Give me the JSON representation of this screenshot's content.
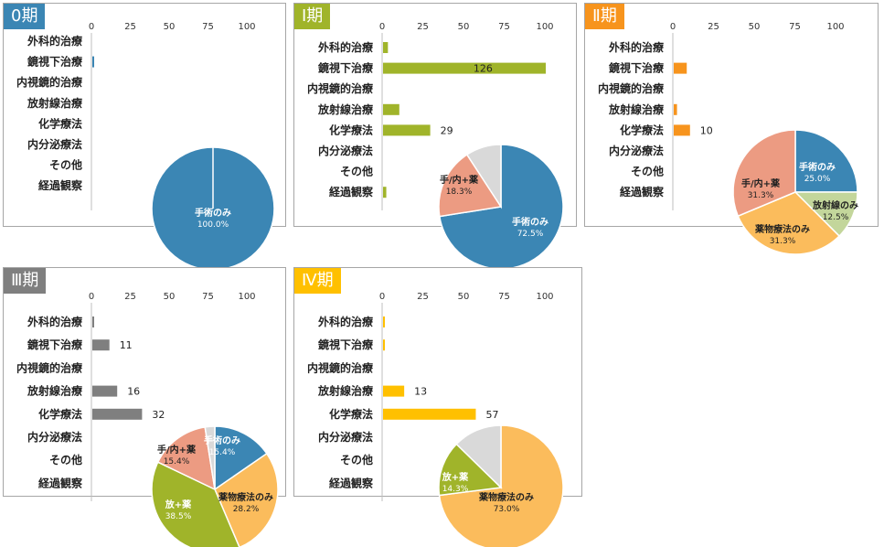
{
  "chart_data": [
    {
      "type": "bar",
      "stage": "0期",
      "tag_color": "#3b86b4",
      "bar_color": "#3b86b4",
      "categories": [
        "外科的治療",
        "鏡視下治療",
        "内視鏡的治療",
        "放射線治療",
        "化学療法",
        "内分泌療法",
        "その他",
        "経過観察"
      ],
      "values": [
        0,
        1,
        0,
        0,
        0,
        0,
        0,
        0
      ],
      "value_labels": [
        "",
        "",
        "",
        "",
        "",
        "",
        "",
        ""
      ],
      "xlim": [
        0,
        100
      ],
      "ticks": [
        "0",
        "25",
        "50",
        "75",
        "100"
      ],
      "pie": {
        "slices": [
          {
            "label": "手術のみ",
            "percent": "100.0%",
            "value": 100.0,
            "color": "#3b86b4"
          }
        ]
      }
    },
    {
      "type": "bar",
      "stage": "Ⅰ期",
      "tag_color": "#a0b42a",
      "bar_color": "#a0b42a",
      "categories": [
        "外科的治療",
        "鏡視下治療",
        "内視鏡的治療",
        "放射線治療",
        "化学療法",
        "内分泌療法",
        "その他",
        "経過観察"
      ],
      "values": [
        3,
        126,
        0,
        10,
        29,
        0,
        0,
        2
      ],
      "value_labels": [
        "",
        "126",
        "",
        "",
        "29",
        "",
        "",
        ""
      ],
      "xlim": [
        0,
        100
      ],
      "ticks": [
        "0",
        "25",
        "50",
        "75",
        "100"
      ],
      "pie": {
        "slices": [
          {
            "label": "手術のみ",
            "percent": "72.5%",
            "value": 72.5,
            "color": "#3b86b4"
          },
          {
            "label": "手/内+薬",
            "percent": "18.3%",
            "value": 18.3,
            "color": "#ec9b82"
          },
          {
            "label": "",
            "percent": "",
            "value": 9.2,
            "color": "#d9d9d9"
          }
        ]
      }
    },
    {
      "type": "bar",
      "stage": "Ⅱ期",
      "tag_color": "#f7941d",
      "bar_color": "#f7941d",
      "categories": [
        "外科的治療",
        "鏡視下治療",
        "内視鏡的治療",
        "放射線治療",
        "化学療法",
        "内分泌療法",
        "その他",
        "経過観察"
      ],
      "values": [
        0,
        8,
        0,
        2,
        10,
        0,
        0,
        0
      ],
      "value_labels": [
        "",
        "",
        "",
        "",
        "10",
        "",
        "",
        ""
      ],
      "xlim": [
        0,
        100
      ],
      "ticks": [
        "0",
        "25",
        "50",
        "75",
        "100"
      ],
      "pie": {
        "slices": [
          {
            "label": "手術のみ",
            "percent": "25.0%",
            "value": 25.0,
            "color": "#3b86b4"
          },
          {
            "label": "放射線のみ",
            "percent": "12.5%",
            "value": 12.5,
            "color": "#c3d69b"
          },
          {
            "label": "薬物療法のみ",
            "percent": "31.3%",
            "value": 31.2,
            "color": "#fbbc5c"
          },
          {
            "label": "手/内+薬",
            "percent": "31.3%",
            "value": 31.3,
            "color": "#ec9b82"
          }
        ]
      }
    },
    {
      "type": "bar",
      "stage": "Ⅲ期",
      "tag_color": "#7f7f7f",
      "bar_color": "#7f7f7f",
      "categories": [
        "外科的治療",
        "鏡視下治療",
        "内視鏡的治療",
        "放射線治療",
        "化学療法",
        "内分泌療法",
        "その他",
        "経過観察"
      ],
      "values": [
        1,
        11,
        0,
        16,
        32,
        0,
        0,
        0
      ],
      "value_labels": [
        "",
        "11",
        "",
        "16",
        "32",
        "",
        "",
        ""
      ],
      "xlim": [
        0,
        100
      ],
      "ticks": [
        "0",
        "25",
        "50",
        "75",
        "100"
      ],
      "pie": {
        "slices": [
          {
            "label": "手術のみ",
            "percent": "15.4%",
            "value": 15.4,
            "color": "#3b86b4"
          },
          {
            "label": "薬物療法のみ",
            "percent": "28.2%",
            "value": 28.2,
            "color": "#fbbc5c"
          },
          {
            "label": "放+薬",
            "percent": "38.5%",
            "value": 38.5,
            "color": "#a0b42a"
          },
          {
            "label": "手/内+薬",
            "percent": "15.4%",
            "value": 15.4,
            "color": "#ec9b82"
          },
          {
            "label": "",
            "percent": "",
            "value": 2.5,
            "color": "#d9d9d9"
          }
        ]
      }
    },
    {
      "type": "bar",
      "stage": "Ⅳ期",
      "tag_color": "#ffc000",
      "bar_color": "#ffc000",
      "categories": [
        "外科的治療",
        "鏡視下治療",
        "内視鏡的治療",
        "放射線治療",
        "化学療法",
        "内分泌療法",
        "その他",
        "経過観察"
      ],
      "values": [
        1,
        1,
        0,
        13,
        57,
        0,
        0,
        0
      ],
      "value_labels": [
        "",
        "",
        "",
        "13",
        "57",
        "",
        "",
        ""
      ],
      "xlim": [
        0,
        100
      ],
      "ticks": [
        "0",
        "25",
        "50",
        "75",
        "100"
      ],
      "pie": {
        "slices": [
          {
            "label": "薬物療法のみ",
            "percent": "73.0%",
            "value": 73.0,
            "color": "#fbbc5c"
          },
          {
            "label": "放+薬",
            "percent": "14.3%",
            "value": 14.3,
            "color": "#a0b42a"
          },
          {
            "label": "",
            "percent": "",
            "value": 12.7,
            "color": "#d9d9d9"
          }
        ]
      }
    }
  ]
}
